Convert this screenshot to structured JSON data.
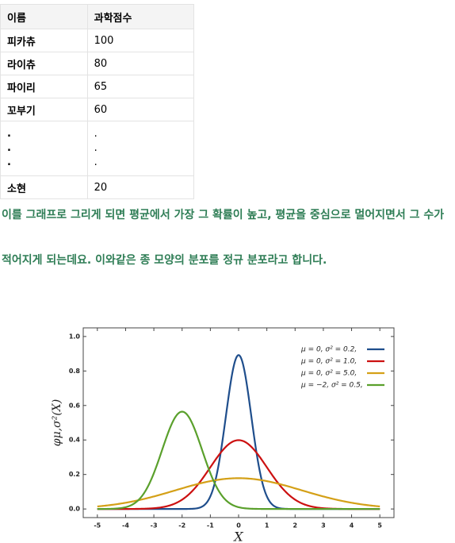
{
  "table": {
    "header": [
      "이름",
      "과학점수"
    ],
    "rows": [
      [
        "피카츄",
        "100"
      ],
      [
        "라이츄",
        "80"
      ],
      [
        "파이리",
        "65"
      ],
      [
        "꼬부기",
        "60"
      ],
      [
        ".\n.\n.",
        ".\n.\n."
      ],
      [
        "소현",
        "20"
      ]
    ]
  },
  "paragraphs": [
    "이를 그래프로 그리게 되면 평균에서 가장 그 확률이 높고, 평균을 중심으로 멀어지면서 그 수가",
    "적어지게 되는데요. 이와같은 종 모양의 분포를 정규 분포라고 합니다."
  ],
  "chart_data": {
    "type": "line",
    "x_label": "X",
    "y_label": "φμ,σ²(X)",
    "xlim": [
      -5.5,
      5.5
    ],
    "xticks": [
      -5,
      -4,
      -3,
      -2,
      -1,
      0,
      1,
      2,
      3,
      4,
      5
    ],
    "ylim": [
      -0.05,
      1.05
    ],
    "yticks": [
      {
        "value": 0,
        "label": "0.0"
      },
      0.2,
      0.4,
      0.6,
      0.8,
      {
        "value": 1,
        "label": "1.0"
      }
    ],
    "series": [
      {
        "name": "μ = 0,   σ² = 0.2,",
        "mu": 0,
        "sigma2": 0.2,
        "color": "#1f4e8c"
      },
      {
        "name": "μ = 0,   σ² = 1.0,",
        "mu": 0,
        "sigma2": 1.0,
        "color": "#cc1111"
      },
      {
        "name": "μ = 0,   σ² = 5.0,",
        "mu": 0,
        "sigma2": 5.0,
        "color": "#d4a017"
      },
      {
        "name": "μ = −2, σ² = 0.5,",
        "mu": -2,
        "sigma2": 0.5,
        "color": "#5aa02c"
      }
    ]
  }
}
